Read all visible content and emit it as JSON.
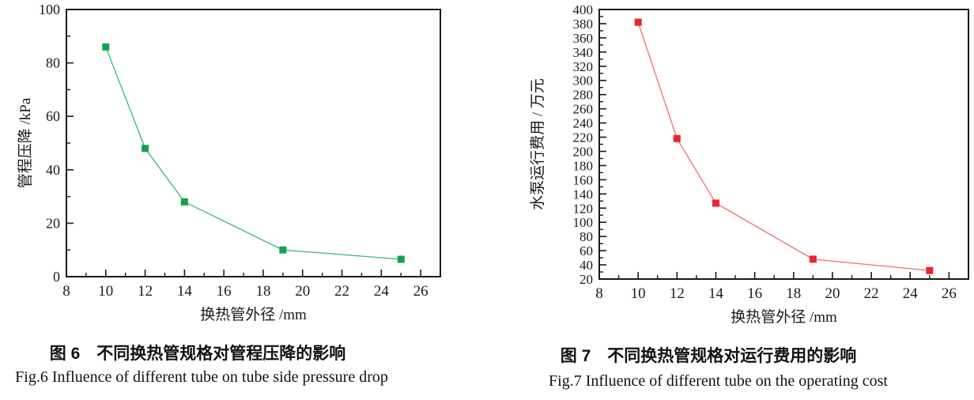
{
  "page": {
    "background": "#ffffff",
    "text_color": "#1a1a1a"
  },
  "chart_data": [
    {
      "type": "line",
      "title": "",
      "xlabel": "换热管外径 /mm",
      "ylabel": "管程压降 /kPa",
      "x": [
        10,
        12,
        14,
        19,
        25
      ],
      "values": [
        86,
        48,
        28,
        10,
        6.5
      ],
      "xlim": [
        8,
        27
      ],
      "ylim": [
        0,
        100
      ],
      "x_major_ticks": [
        8,
        10,
        12,
        14,
        16,
        18,
        20,
        22,
        24,
        26
      ],
      "y_major_ticks": [
        0,
        20,
        40,
        60,
        80,
        100
      ],
      "x_minor_step": 1,
      "y_minor_step": 10,
      "marker": "square",
      "marker_color": "#12a150",
      "line_color": "#3cb474",
      "grid": false,
      "legend": "none",
      "frame": "box",
      "caption_cn": "图 6　不同换热管规格对管程压降的影响",
      "caption_en": "Fig.6 Influence of different tube on tube side pressure drop"
    },
    {
      "type": "line",
      "title": "",
      "xlabel": "换热管外径 /mm",
      "ylabel": "水泵运行费用 / 万元",
      "x": [
        10,
        12,
        14,
        19,
        25
      ],
      "values": [
        382,
        218,
        127,
        48,
        32
      ],
      "xlim": [
        8,
        27
      ],
      "ylim": [
        20,
        400
      ],
      "x_major_ticks": [
        8,
        10,
        12,
        14,
        16,
        18,
        20,
        22,
        24,
        26
      ],
      "y_major_ticks": [
        20,
        40,
        60,
        80,
        100,
        120,
        140,
        160,
        180,
        200,
        220,
        240,
        260,
        280,
        300,
        320,
        340,
        360,
        380,
        400
      ],
      "x_minor_step": 1,
      "y_minor_step": 10,
      "marker": "square",
      "marker_color": "#e8262b",
      "line_color": "#ef6e6e",
      "grid": false,
      "legend": "none",
      "frame": "box",
      "caption_cn": "图 7　不同换热管规格对运行费用的影响",
      "caption_en": "Fig.7  Influence of different tube on the operating cost"
    }
  ]
}
